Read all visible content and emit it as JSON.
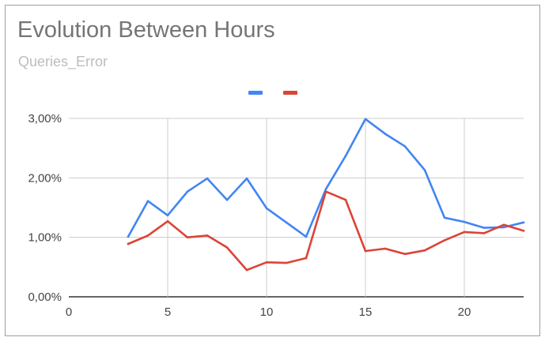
{
  "title": "Evolution Between Hours",
  "subtitle": "Queries_Error",
  "chart_data": {
    "type": "line",
    "xlim": [
      0,
      23
    ],
    "ylim": [
      0,
      3
    ],
    "x_ticks": [
      0,
      5,
      10,
      15,
      20
    ],
    "y_ticks": [
      {
        "value": 0,
        "label": "0,00%"
      },
      {
        "value": 1,
        "label": "1,00%"
      },
      {
        "value": 2,
        "label": "2,00%"
      },
      {
        "value": 3,
        "label": "3,00%"
      }
    ],
    "grid": true,
    "legend": "top-center",
    "x": [
      3,
      4,
      5,
      6,
      7,
      8,
      9,
      10,
      11,
      12,
      13,
      14,
      15,
      16,
      17,
      18,
      19,
      20,
      21,
      22,
      23
    ],
    "series": [
      {
        "color": "#4285f4",
        "values": [
          1.01,
          1.61,
          1.37,
          1.77,
          1.99,
          1.63,
          1.99,
          1.49,
          1.25,
          1.01,
          1.81,
          2.37,
          2.99,
          2.74,
          2.53,
          2.13,
          1.33,
          1.26,
          1.16,
          1.17,
          1.25
        ]
      },
      {
        "color": "#db4437",
        "values": [
          0.89,
          1.03,
          1.27,
          1.0,
          1.03,
          0.83,
          0.45,
          0.58,
          0.57,
          0.65,
          1.77,
          1.63,
          0.77,
          0.81,
          0.72,
          0.78,
          0.95,
          1.09,
          1.07,
          1.21,
          1.11
        ]
      }
    ]
  }
}
